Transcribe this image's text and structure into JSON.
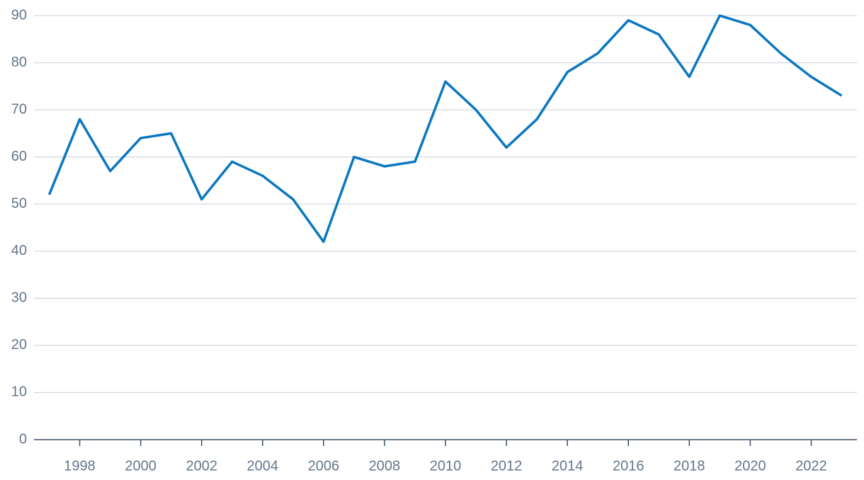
{
  "chart_data": {
    "type": "line",
    "x": [
      1997,
      1998,
      1999,
      2000,
      2001,
      2002,
      2003,
      2004,
      2005,
      2006,
      2007,
      2008,
      2009,
      2010,
      2011,
      2012,
      2013,
      2014,
      2015,
      2016,
      2017,
      2018,
      2019,
      2020,
      2021,
      2022,
      2023
    ],
    "values": [
      52,
      68,
      57,
      64,
      65,
      51,
      59,
      56,
      51,
      42,
      60,
      58,
      59,
      76,
      70,
      62,
      68,
      78,
      82,
      89,
      86,
      77,
      90,
      88,
      82,
      77,
      73
    ],
    "color": "#0b77c0",
    "xlim": [
      1996.5,
      2023.5
    ],
    "xticks": [
      1998,
      2000,
      2002,
      2004,
      2006,
      2008,
      2010,
      2012,
      2014,
      2016,
      2018,
      2020,
      2022
    ],
    "ylim": [
      0,
      90
    ],
    "yticks": [
      0,
      10,
      20,
      30,
      40,
      50,
      60,
      70,
      80,
      90
    ],
    "grid": true
  }
}
